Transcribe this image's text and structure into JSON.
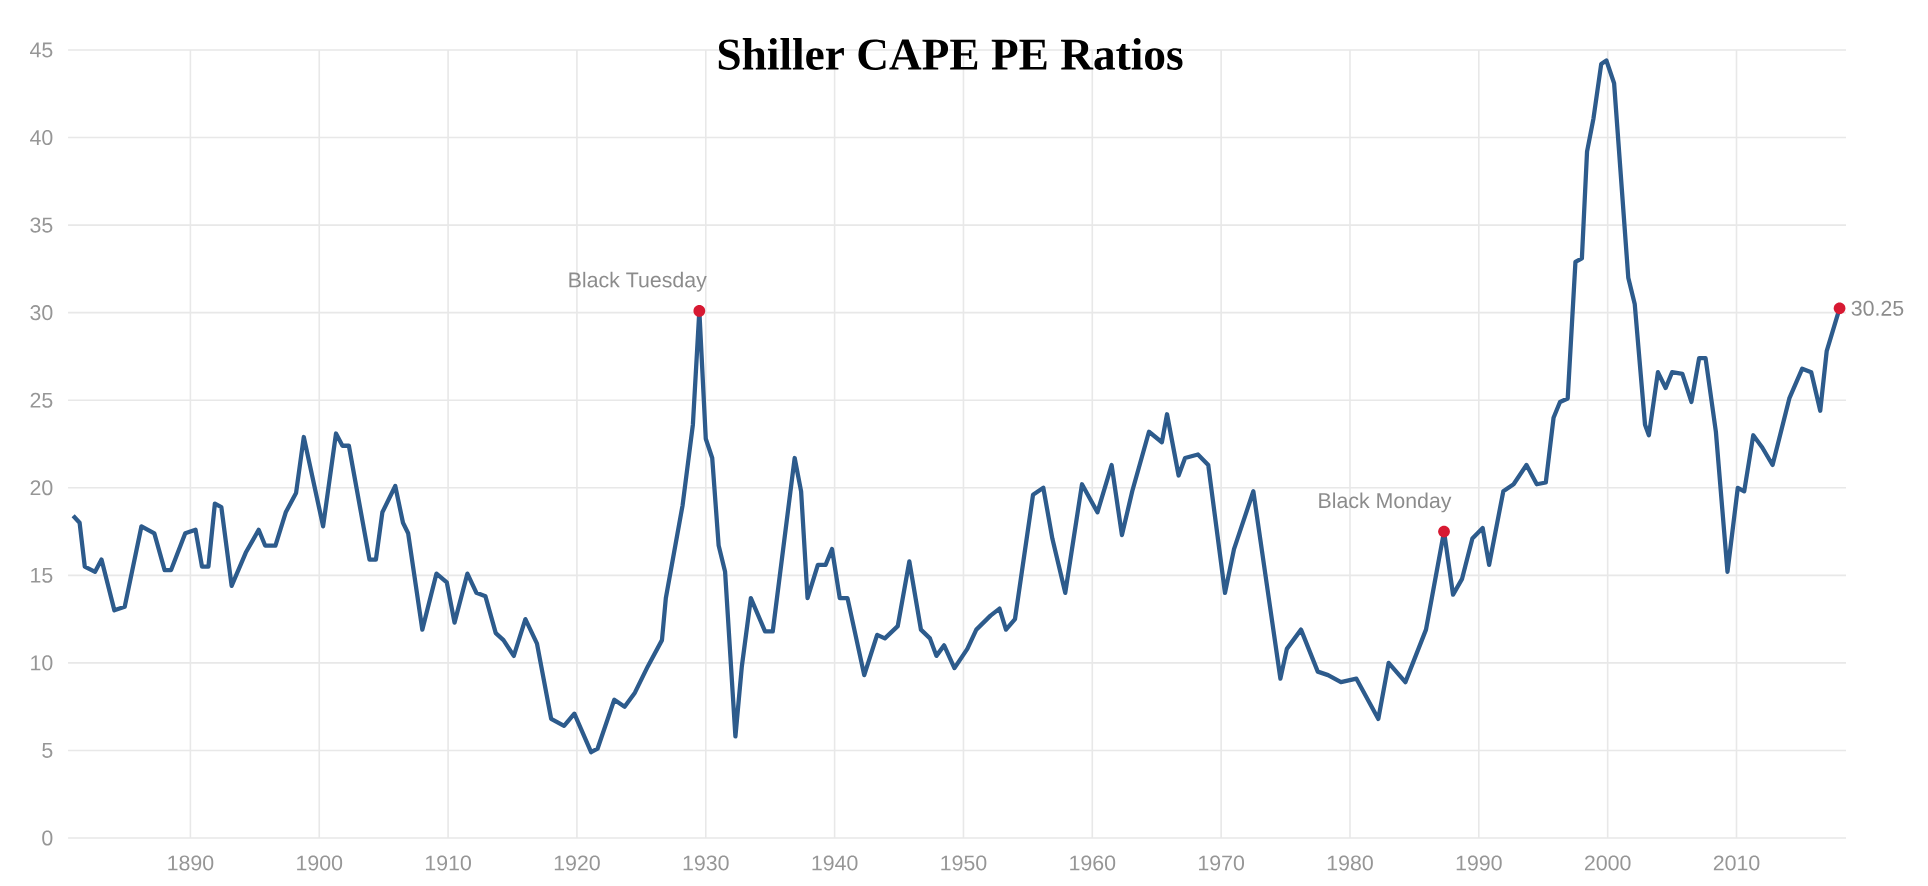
{
  "chart_data": {
    "type": "line",
    "title": "Shiller CAPE PE Ratios",
    "x": [
      1880.9,
      1881.4,
      1881.8,
      1882.6,
      1883.1,
      1884.1,
      1884.9,
      1886.2,
      1887.2,
      1888.0,
      1888.5,
      1889.6,
      1890.4,
      1890.9,
      1891.4,
      1891.9,
      1892.4,
      1893.2,
      1894.3,
      1895.3,
      1895.8,
      1896.6,
      1897.4,
      1898.2,
      1898.8,
      1899.3,
      1900.3,
      1901.3,
      1901.8,
      1902.3,
      1903.9,
      1904.4,
      1904.9,
      1905.9,
      1906.5,
      1906.9,
      1908.0,
      1909.1,
      1909.9,
      1910.5,
      1911.5,
      1912.2,
      1912.9,
      1913.7,
      1914.3,
      1915.1,
      1916.0,
      1916.9,
      1918.0,
      1919.0,
      1919.8,
      1921.1,
      1921.6,
      1922.9,
      1923.7,
      1924.5,
      1925.5,
      1926.6,
      1926.9,
      1928.2,
      1929.0,
      1929.5,
      1930.0,
      1930.5,
      1931.0,
      1931.5,
      1932.3,
      1932.8,
      1933.5,
      1934.6,
      1935.2,
      1936.9,
      1937.4,
      1937.9,
      1938.7,
      1939.3,
      1939.8,
      1940.4,
      1941.0,
      1942.3,
      1943.3,
      1943.9,
      1944.9,
      1945.8,
      1946.7,
      1947.4,
      1947.9,
      1948.5,
      1949.3,
      1950.3,
      1951.0,
      1952.1,
      1952.8,
      1953.3,
      1954.0,
      1955.4,
      1956.2,
      1956.9,
      1957.9,
      1959.2,
      1960.4,
      1961.5,
      1962.3,
      1963.1,
      1964.4,
      1965.4,
      1965.8,
      1966.7,
      1967.2,
      1968.2,
      1969.0,
      1970.3,
      1971.0,
      1972.5,
      1974.6,
      1975.1,
      1976.2,
      1977.5,
      1978.3,
      1979.3,
      1980.5,
      1982.2,
      1983.0,
      1984.3,
      1985.9,
      1987.3,
      1988.0,
      1988.7,
      1989.5,
      1990.3,
      1990.8,
      1991.9,
      1992.7,
      1993.7,
      1994.5,
      1995.2,
      1995.8,
      1996.3,
      1996.9,
      1997.5,
      1998.0,
      1998.4,
      1998.9,
      1999.5,
      1999.9,
      2000.5,
      2001.6,
      2002.1,
      2002.9,
      2003.2,
      2003.9,
      2004.5,
      2005.0,
      2005.8,
      2006.5,
      2007.1,
      2007.6,
      2008.4,
      2009.3,
      2010.1,
      2010.6,
      2011.3,
      2012.0,
      2012.8,
      2014.1,
      2015.1,
      2015.8,
      2016.5,
      2017.0,
      2018.0
    ],
    "series": [
      {
        "color": "#2d5b8c",
        "values": [
          18.4,
          18.0,
          15.5,
          15.2,
          15.9,
          13.0,
          13.2,
          17.8,
          17.4,
          15.3,
          15.3,
          17.4,
          17.6,
          15.5,
          15.5,
          19.1,
          18.9,
          14.4,
          16.3,
          17.6,
          16.7,
          16.7,
          18.6,
          19.7,
          22.9,
          21.2,
          17.8,
          23.1,
          22.4,
          22.4,
          15.9,
          15.9,
          18.6,
          20.1,
          18.0,
          17.4,
          11.9,
          15.1,
          14.6,
          12.3,
          15.1,
          14.0,
          13.8,
          11.7,
          11.3,
          10.4,
          12.5,
          11.1,
          6.8,
          6.4,
          7.1,
          4.9,
          5.1,
          7.9,
          7.5,
          8.3,
          9.8,
          11.3,
          13.7,
          19.0,
          23.6,
          30.1,
          22.8,
          21.7,
          16.7,
          15.2,
          5.8,
          9.8,
          13.7,
          11.8,
          11.8,
          21.7,
          19.8,
          13.7,
          15.6,
          15.6,
          16.5,
          13.7,
          13.7,
          9.3,
          11.6,
          11.4,
          12.1,
          15.8,
          11.9,
          11.4,
          10.4,
          11.0,
          9.7,
          10.8,
          11.9,
          12.7,
          13.1,
          11.9,
          12.5,
          19.6,
          20.0,
          17.1,
          14.0,
          20.2,
          18.6,
          21.3,
          17.3,
          19.8,
          23.2,
          22.6,
          24.2,
          20.7,
          21.7,
          21.9,
          21.3,
          14.0,
          16.5,
          19.8,
          9.1,
          10.8,
          11.9,
          9.5,
          9.3,
          8.9,
          9.1,
          6.8,
          10.0,
          8.9,
          11.9,
          17.5,
          13.9,
          14.8,
          17.1,
          17.7,
          15.6,
          19.8,
          20.2,
          21.3,
          20.2,
          20.3,
          24.0,
          24.9,
          25.1,
          32.9,
          33.1,
          39.2,
          41.1,
          44.2,
          44.4,
          43.1,
          32.0,
          30.5,
          23.6,
          23.0,
          26.6,
          25.7,
          26.6,
          26.5,
          24.9,
          27.4,
          27.4,
          23.2,
          15.2,
          20.0,
          19.8,
          23.0,
          22.3,
          21.3,
          25.1,
          26.8,
          26.6,
          24.4,
          27.8,
          30.25
        ]
      }
    ],
    "xlim": [
      1880.5,
      2018.5
    ],
    "ylim": [
      0,
      45
    ],
    "xticks": [
      1890,
      1900,
      1910,
      1920,
      1930,
      1940,
      1950,
      1960,
      1970,
      1980,
      1990,
      2000,
      2010
    ],
    "yticks": [
      0,
      5,
      10,
      15,
      20,
      25,
      30,
      35,
      40,
      45
    ],
    "grid": true,
    "marker": "none",
    "line_style": "solid",
    "annotations": [
      {
        "text": "Black Tuesday",
        "x": 1929.5,
        "y": 30.1
      },
      {
        "text": "Black Monday",
        "x": 1987.3,
        "y": 17.5
      },
      {
        "text": "30.25",
        "x": 2018.0,
        "y": 30.25
      }
    ]
  }
}
